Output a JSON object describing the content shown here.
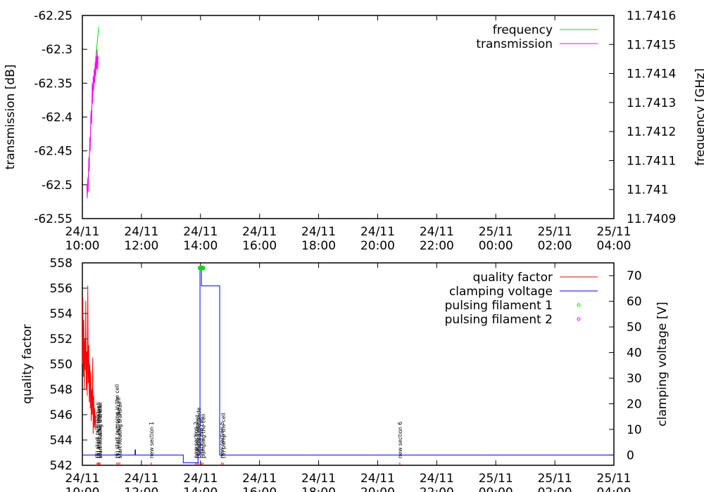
{
  "chart_data": [
    {
      "type": "line",
      "ylabel": "transmission [dB]",
      "y2label": "frequency [GHz]",
      "ylim": [
        -62.55,
        -62.25
      ],
      "y2lim": [
        11.7409,
        11.7416
      ],
      "y_ticks": [
        "-62.25",
        "-62.3",
        "-62.35",
        "-62.4",
        "-62.45",
        "-62.5",
        "-62.55"
      ],
      "y2_ticks": [
        "11.7416",
        "11.7415",
        "11.7414",
        "11.7413",
        "11.7412",
        "11.7411",
        "11.741",
        "11.7409"
      ],
      "x_ticks": [
        {
          "date": "24/11",
          "time": "10:00"
        },
        {
          "date": "24/11",
          "time": "12:00"
        },
        {
          "date": "24/11",
          "time": "14:00"
        },
        {
          "date": "24/11",
          "time": "16:00"
        },
        {
          "date": "24/11",
          "time": "18:00"
        },
        {
          "date": "24/11",
          "time": "20:00"
        },
        {
          "date": "24/11",
          "time": "22:00"
        },
        {
          "date": "25/11",
          "time": "00:00"
        },
        {
          "date": "25/11",
          "time": "02:00"
        },
        {
          "date": "25/11",
          "time": "04:00"
        }
      ],
      "xlim": [
        "24/11 10:00",
        "25/11 04:00"
      ],
      "legend_position": "top-right",
      "series": [
        {
          "name": "frequency",
          "axis": "y2",
          "color": "#00dd00",
          "points": [
            [
              "24/11 10:10",
              11.74098
            ],
            [
              "24/11 10:13",
              11.74108
            ],
            [
              "24/11 10:16",
              11.74118
            ],
            [
              "24/11 10:19",
              11.74128
            ],
            [
              "24/11 10:22",
              11.74136
            ],
            [
              "24/11 10:25",
              11.74141
            ],
            [
              "24/11 10:28",
              11.74147
            ],
            [
              "24/11 10:31",
              11.74152
            ],
            [
              "24/11 10:33",
              11.74156
            ]
          ]
        },
        {
          "name": "transmission",
          "axis": "y",
          "color": "#ff00ff",
          "points": [
            [
              "24/11 10:09",
              -62.5
            ],
            [
              "24/11 10:10",
              -62.52
            ],
            [
              "24/11 10:11",
              -62.49
            ],
            [
              "24/11 10:12",
              -62.51
            ],
            [
              "24/11 10:13",
              -62.46
            ],
            [
              "24/11 10:14",
              -62.48
            ],
            [
              "24/11 10:15",
              -62.43
            ],
            [
              "24/11 10:16",
              -62.45
            ],
            [
              "24/11 10:17",
              -62.4
            ],
            [
              "24/11 10:18",
              -62.39
            ],
            [
              "24/11 10:19",
              -62.41
            ],
            [
              "24/11 10:20",
              -62.35
            ],
            [
              "24/11 10:21",
              -62.38
            ],
            [
              "24/11 10:22",
              -62.34
            ],
            [
              "24/11 10:23",
              -62.36
            ],
            [
              "24/11 10:24",
              -62.33
            ],
            [
              "24/11 10:25",
              -62.35
            ],
            [
              "24/11 10:26",
              -62.32
            ],
            [
              "24/11 10:27",
              -62.34
            ],
            [
              "24/11 10:28",
              -62.31
            ],
            [
              "24/11 10:29",
              -62.33
            ],
            [
              "24/11 10:30",
              -62.3
            ],
            [
              "24/11 10:31",
              -62.33
            ],
            [
              "24/11 10:32",
              -62.31
            ]
          ]
        }
      ]
    },
    {
      "type": "line",
      "ylabel": "quality factor",
      "y2label": "clamping voltage [V]",
      "ylim": [
        542,
        558
      ],
      "y2lim": [
        -4,
        75
      ],
      "y_ticks": [
        "558",
        "556",
        "554",
        "552",
        "550",
        "548",
        "546",
        "544",
        "542"
      ],
      "y2_ticks": [
        "70",
        "60",
        "50",
        "40",
        "30",
        "20",
        "10",
        "0"
      ],
      "x_ticks": [
        {
          "date": "24/11",
          "time": "10:00"
        },
        {
          "date": "24/11",
          "time": "12:00"
        },
        {
          "date": "24/11",
          "time": "14:00"
        },
        {
          "date": "24/11",
          "time": "16:00"
        },
        {
          "date": "24/11",
          "time": "18:00"
        },
        {
          "date": "24/11",
          "time": "20:00"
        },
        {
          "date": "24/11",
          "time": "22:00"
        },
        {
          "date": "25/11",
          "time": "00:00"
        },
        {
          "date": "25/11",
          "time": "02:00"
        },
        {
          "date": "25/11",
          "time": "04:00"
        }
      ],
      "xlim": [
        "24/11 10:00",
        "25/11 04:00"
      ],
      "legend_position": "top-right",
      "series": [
        {
          "name": "quality factor",
          "axis": "y",
          "color": "#ff0000",
          "points": [
            [
              "24/11 10:00",
              550
            ],
            [
              "24/11 10:01",
              555.3
            ],
            [
              "24/11 10:02",
              549
            ],
            [
              "24/11 10:03",
              553.5
            ],
            [
              "24/11 10:04",
              548
            ],
            [
              "24/11 10:05",
              552
            ],
            [
              "24/11 10:06",
              549.5
            ],
            [
              "24/11 10:07",
              555
            ],
            [
              "24/11 10:08",
              548
            ],
            [
              "24/11 10:09",
              551
            ],
            [
              "24/11 10:10",
              547.5
            ],
            [
              "24/11 10:11",
              556.2
            ],
            [
              "24/11 10:12",
              548.5
            ],
            [
              "24/11 10:13",
              551.5
            ],
            [
              "24/11 10:14",
              547
            ],
            [
              "24/11 10:15",
              550
            ],
            [
              "24/11 10:16",
              546.5
            ],
            [
              "24/11 10:17",
              549.5
            ],
            [
              "24/11 10:18",
              545.5
            ],
            [
              "24/11 10:19",
              548
            ],
            [
              "24/11 10:20",
              546
            ],
            [
              "24/11 10:21",
              550.5
            ],
            [
              "24/11 10:22",
              544.5
            ],
            [
              "24/11 10:23",
              547.5
            ],
            [
              "24/11 10:24",
              545
            ],
            [
              "24/11 10:25",
              546.5
            ],
            [
              "24/11 10:26",
              544.8
            ],
            [
              "24/11 10:27",
              546
            ]
          ]
        },
        {
          "name": "clamping voltage",
          "axis": "y2",
          "color": "#0000ff",
          "points": [
            [
              "24/11 10:00",
              0
            ],
            [
              "24/11 11:47",
              0
            ],
            [
              "24/11 11:47",
              2
            ],
            [
              "24/11 11:48",
              2
            ],
            [
              "24/11 11:48",
              0
            ],
            [
              "24/11 13:25",
              0
            ],
            [
              "24/11 13:25",
              -3
            ],
            [
              "24/11 13:55",
              -3
            ],
            [
              "24/11 13:55",
              0
            ],
            [
              "24/11 13:59",
              0
            ],
            [
              "24/11 13:59",
              73
            ],
            [
              "24/11 14:02",
              73
            ],
            [
              "24/11 14:02",
              66
            ],
            [
              "24/11 14:39",
              66
            ],
            [
              "24/11 14:39",
              0
            ],
            [
              "25/11 04:00",
              0
            ]
          ]
        },
        {
          "name": "pulsing filament 1",
          "axis": "y",
          "color": "#00dd00",
          "marker": "circle",
          "points": [
            [
              "24/11 13:59",
              557.6
            ],
            [
              "24/11 14:00",
              557.6
            ],
            [
              "24/11 14:01",
              557.6
            ],
            [
              "24/11 14:02",
              557.6
            ],
            [
              "24/11 14:03",
              557.6
            ],
            [
              "24/11 14:04",
              557.6
            ],
            [
              "24/11 14:05",
              557.6
            ]
          ]
        },
        {
          "name": "pulsing filament 2",
          "axis": "y",
          "color": "#ff00ff",
          "marker": "circle",
          "points": []
        }
      ],
      "annotations": [
        {
          "time": "24/11 10:30",
          "text": "(5) start pumping"
        },
        {
          "time": "24/11 10:32",
          "text": "(9) start LN2 the wall"
        },
        {
          "time": "24/11 10:34",
          "text": "(8) start LN2 the wall"
        },
        {
          "time": "24/11 10:36",
          "text": "start heating transfer"
        },
        {
          "time": "24/11 11:10",
          "text": "(6) start pumping in the cell"
        },
        {
          "time": "24/11 11:13",
          "text": "(1) start LN2 in the cell"
        },
        {
          "time": "24/11 11:16",
          "text": "start heating transfer"
        },
        {
          "time": "24/11 12:20",
          "text": "new section 1"
        },
        {
          "time": "24/11 13:50",
          "text": "new section 2"
        },
        {
          "time": "24/11 13:53",
          "text": "heating filament"
        },
        {
          "time": "24/11 13:56",
          "text": "clamping electrode"
        },
        {
          "time": "24/11 14:02",
          "text": "heating the cell"
        },
        {
          "time": "24/11 14:05",
          "text": "pumping the cell"
        },
        {
          "time": "24/11 14:43",
          "text": "new section 5"
        },
        {
          "time": "24/11 14:46",
          "text": "(5) pump the cell"
        },
        {
          "time": "24/11 20:45",
          "text": "new section 6"
        }
      ]
    }
  ]
}
